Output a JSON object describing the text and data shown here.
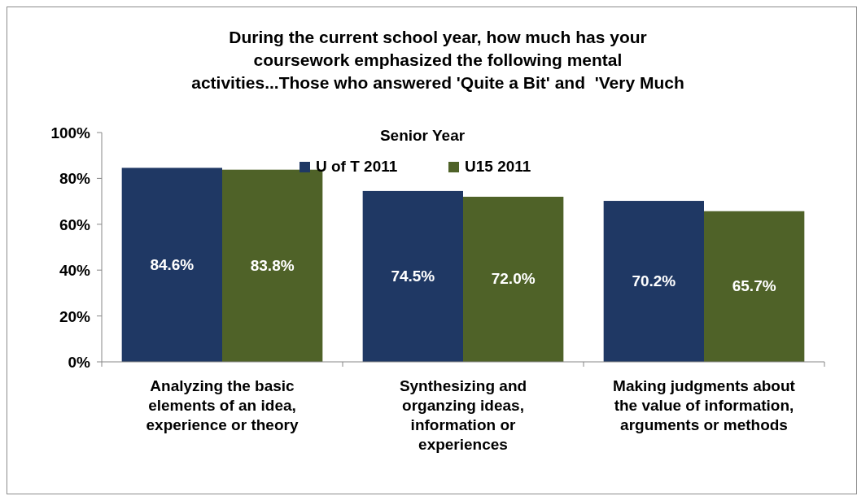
{
  "chart_data": {
    "type": "bar",
    "title": "During the current school year, how much has your\ncoursework emphasized the following mental\nactivities...Those who answered 'Quite a Bit' and  'Very Much",
    "subtitle": "Senior Year",
    "categories": [
      "Analyzing the basic elements of an idea, experience or theory",
      "Synthesizing and organzing ideas, information or experiences",
      "Making judgments about the value of information, arguments or methods"
    ],
    "series": [
      {
        "name": "U of T 2011",
        "color": "#1f3864",
        "values": [
          84.6,
          74.5,
          70.2
        ],
        "value_labels": [
          "84.6%",
          "74.5%",
          "70.2%"
        ]
      },
      {
        "name": "U15 2011",
        "color": "#4f6228",
        "values": [
          83.8,
          72.0,
          65.7
        ],
        "value_labels": [
          "83.8%",
          "72.0%",
          "65.7%"
        ]
      }
    ],
    "ylim": [
      0,
      100
    ],
    "yticks": [
      {
        "value": 0,
        "label": "0%"
      },
      {
        "value": 20,
        "label": "20%"
      },
      {
        "value": 40,
        "label": "40%"
      },
      {
        "value": 60,
        "label": "60%"
      },
      {
        "value": 80,
        "label": "80%"
      },
      {
        "value": 100,
        "label": "100%"
      }
    ],
    "grid": false,
    "legend": "top"
  }
}
